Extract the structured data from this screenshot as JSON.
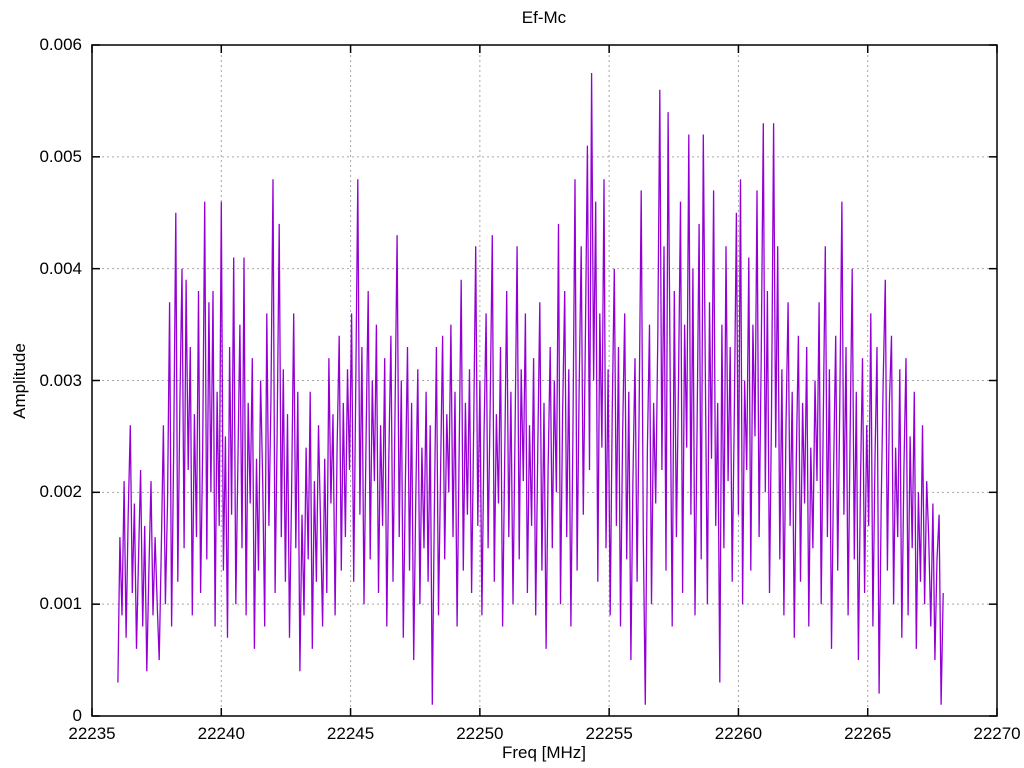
{
  "chart_data": {
    "type": "line",
    "title": "Ef-Mc",
    "xlabel": "Freq [MHz]",
    "ylabel": "Amplitude",
    "xlim": [
      22235,
      22270
    ],
    "ylim": [
      0,
      0.006
    ],
    "x_ticks": [
      22235,
      22240,
      22245,
      22250,
      22255,
      22260,
      22265,
      22270
    ],
    "x_tick_labels": [
      "22235",
      "22240",
      "22245",
      "22250",
      "22255",
      "22260",
      "22265",
      "22270"
    ],
    "y_ticks": [
      0,
      0.001,
      0.002,
      0.003,
      0.004,
      0.005,
      0.006
    ],
    "y_tick_labels": [
      "0",
      "0.001",
      "0.002",
      "0.003",
      "0.004",
      "0.005",
      "0.006"
    ],
    "grid": true,
    "grid_style": "dashed-gray",
    "legend": "none",
    "line_color": "#9400D3",
    "amplitude_scale": 0.0001,
    "series": [
      {
        "name": "Ef-Mc",
        "x_start": 22236.0,
        "x_step": 0.08,
        "values": [
          3,
          16,
          9,
          21,
          7,
          18,
          26,
          11,
          19,
          6,
          14,
          22,
          8,
          17,
          4,
          13,
          21,
          9,
          16,
          10,
          5,
          15,
          26,
          10,
          19,
          37,
          8,
          24,
          45,
          12,
          28,
          40,
          15,
          39,
          22,
          33,
          9,
          27,
          16,
          38,
          11,
          24,
          46,
          14,
          37,
          20,
          38,
          8,
          29,
          17,
          46,
          13,
          25,
          7,
          33,
          18,
          41,
          10,
          22,
          35,
          15,
          41,
          9,
          28,
          19,
          32,
          6,
          23,
          13,
          30,
          21,
          8,
          36,
          17,
          28,
          48,
          11,
          25,
          44,
          16,
          31,
          12,
          27,
          7,
          20,
          36,
          15,
          29,
          4,
          18,
          9,
          24,
          14,
          29,
          6,
          21,
          12,
          26,
          17,
          8,
          23,
          11,
          32,
          19,
          27,
          9,
          24,
          34,
          13,
          28,
          16,
          31,
          22,
          36,
          12,
          29,
          48,
          18,
          33,
          10,
          25,
          38,
          14,
          30,
          21,
          35,
          11,
          26,
          17,
          32,
          8,
          23,
          34,
          12,
          27,
          43,
          16,
          30,
          7,
          21,
          33,
          13,
          28,
          5,
          19,
          31,
          10,
          24,
          15,
          29,
          12,
          26,
          1,
          18,
          33,
          9,
          22,
          34,
          14,
          27,
          20,
          35,
          16,
          29,
          8,
          24,
          39,
          13,
          28,
          18,
          31,
          11,
          26,
          42,
          17,
          30,
          9,
          25,
          36,
          15,
          28,
          43,
          12,
          27,
          19,
          33,
          8,
          23,
          38,
          16,
          29,
          10,
          25,
          42,
          14,
          31,
          21,
          36,
          11,
          26,
          17,
          32,
          9,
          24,
          37,
          13,
          28,
          6,
          22,
          33,
          15,
          30,
          20,
          44,
          10,
          27,
          38,
          16,
          31,
          8,
          25,
          48,
          13,
          29,
          42,
          18,
          34,
          51,
          22,
          57.5,
          30,
          46,
          12,
          36,
          24,
          48,
          15,
          31,
          9,
          27,
          40,
          17,
          33,
          8,
          25,
          36,
          14,
          29,
          5,
          21,
          32,
          12,
          27,
          47,
          16,
          1,
          24,
          35,
          10,
          28,
          19,
          34,
          56,
          22,
          42,
          13,
          54,
          30,
          8,
          38,
          16,
          29,
          46,
          11,
          35,
          24,
          52,
          18,
          40,
          9,
          26,
          44,
          14,
          52,
          31,
          10,
          37,
          23,
          47,
          17,
          28,
          3,
          35,
          15,
          42,
          21,
          33,
          12,
          27,
          45,
          18,
          48,
          10,
          30,
          22,
          41,
          13,
          35,
          25,
          47,
          16,
          32,
          53,
          20,
          38,
          11,
          27,
          53,
          24,
          42,
          14,
          31,
          9,
          26,
          37,
          17,
          29,
          7,
          23,
          34,
          12,
          28,
          19,
          33,
          8,
          24,
          15,
          30,
          21,
          37,
          10,
          26,
          42,
          16,
          31,
          6,
          22,
          34,
          13,
          28,
          46,
          18,
          33,
          9,
          25,
          40,
          14,
          29,
          5,
          21,
          32,
          11,
          26,
          17,
          36,
          8,
          23,
          33,
          2,
          19,
          30,
          39,
          13,
          28,
          34,
          10,
          24,
          16,
          31,
          7,
          22,
          32,
          9,
          25,
          15,
          29,
          6,
          20,
          12,
          26,
          10,
          21,
          16,
          8,
          19,
          5,
          14,
          18,
          1,
          11
        ]
      }
    ]
  }
}
